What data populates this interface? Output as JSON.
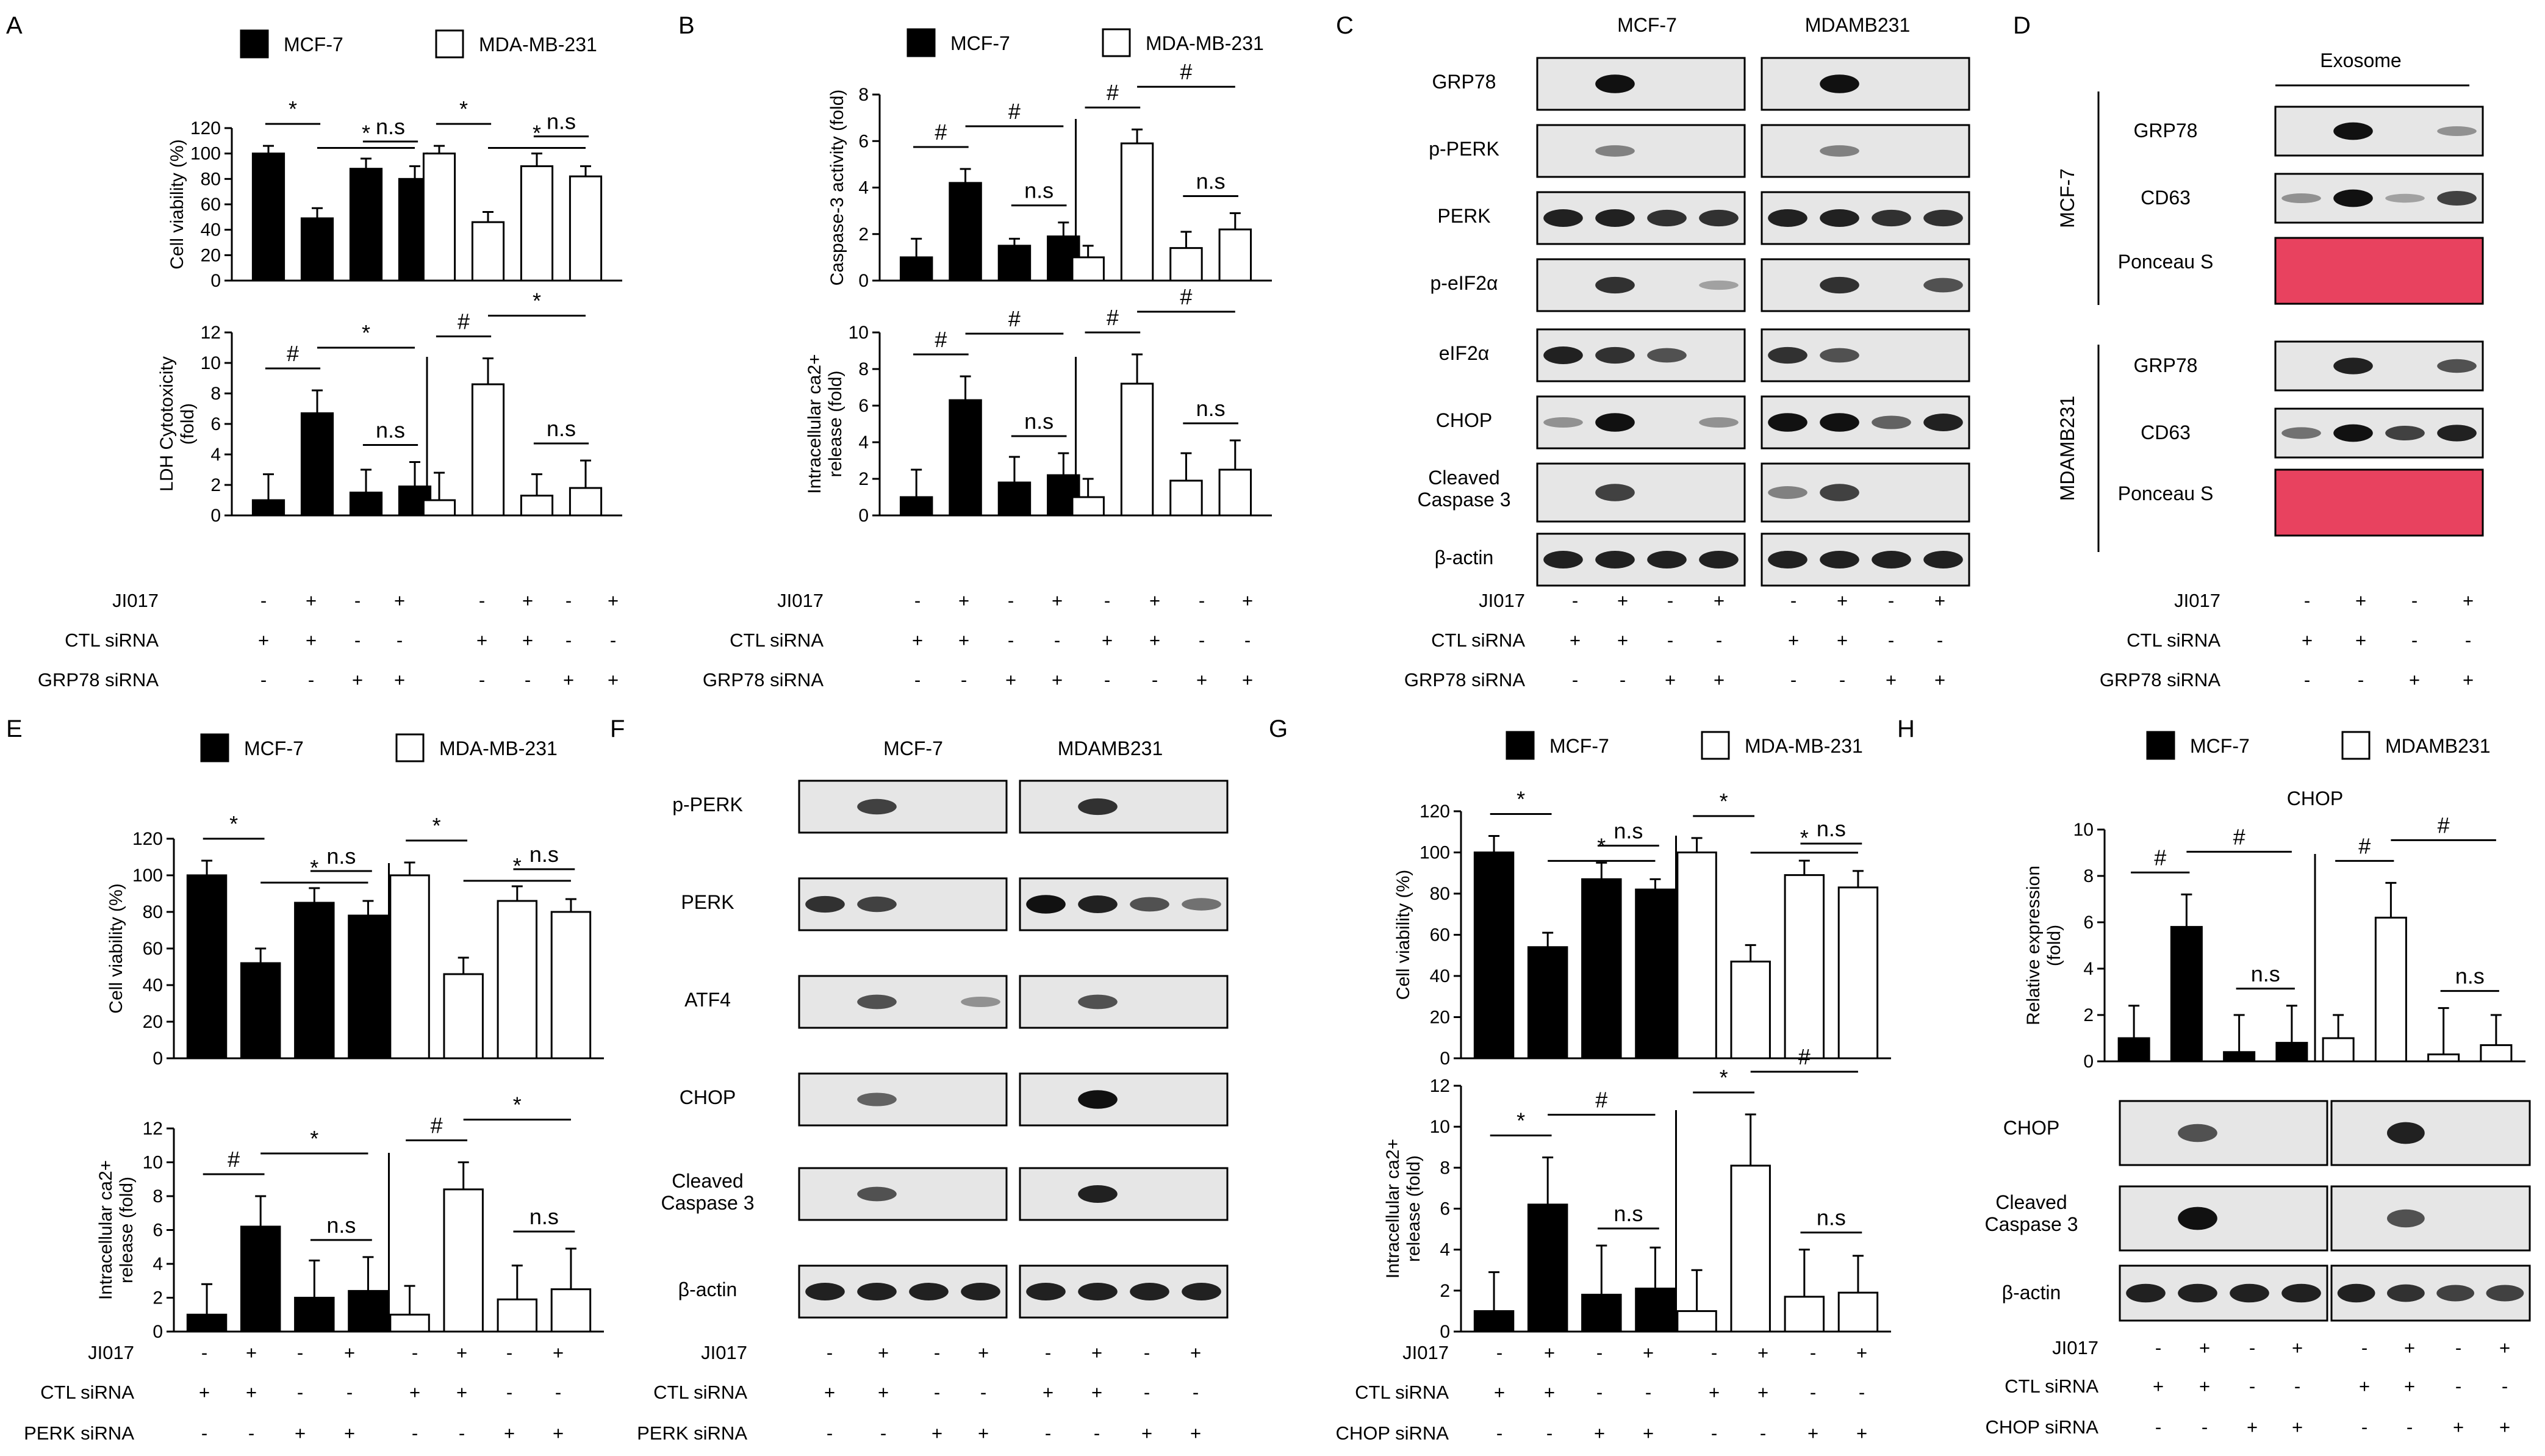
{
  "legends": {
    "cell_lines": [
      "MCF-7",
      "MDA-MB-231"
    ],
    "cell_lines_h": [
      "MCF-7",
      "MDAMB231"
    ]
  },
  "conditions": {
    "grp78": {
      "rows": [
        "JI017",
        "CTL siRNA",
        "GRP78 siRNA"
      ],
      "signs": [
        [
          "-",
          "+",
          "-",
          "+",
          "-",
          "+",
          "-",
          "+"
        ],
        [
          "+",
          "+",
          "-",
          "-",
          "+",
          "+",
          "-",
          "-"
        ],
        [
          "-",
          "-",
          "+",
          "+",
          "-",
          "-",
          "+",
          "+"
        ]
      ]
    },
    "perk": {
      "rows": [
        "JI017",
        "CTL siRNA",
        "PERK siRNA"
      ],
      "signs": [
        [
          "-",
          "+",
          "-",
          "+",
          "-",
          "+",
          "-",
          "+"
        ],
        [
          "+",
          "+",
          "-",
          "-",
          "+",
          "+",
          "-",
          "-"
        ],
        [
          "-",
          "-",
          "+",
          "+",
          "-",
          "-",
          "+",
          "+"
        ]
      ]
    },
    "chop": {
      "rows": [
        "JI017",
        "CTL siRNA",
        "CHOP siRNA"
      ],
      "signs": [
        [
          "-",
          "+",
          "-",
          "+",
          "-",
          "+",
          "-",
          "+"
        ],
        [
          "+",
          "+",
          "-",
          "-",
          "+",
          "+",
          "-",
          "-"
        ],
        [
          "-",
          "-",
          "+",
          "+",
          "-",
          "-",
          "+",
          "+"
        ]
      ]
    }
  },
  "blots": {
    "C": {
      "lanes_header": [
        "MCF-7",
        "MDAMB231"
      ],
      "bands": [
        "GRP78",
        "p-PERK",
        "PERK",
        "p-eIF2α",
        "eIF2α",
        "CHOP",
        "Cleaved\nCaspase 3",
        "β-actin"
      ]
    },
    "D": {
      "lanes_header": [
        "Exosome"
      ],
      "groups": [
        "MCF-7",
        "MDAMB231"
      ],
      "bands": [
        "GRP78",
        "CD63",
        "Ponceau S",
        "GRP78",
        "CD63",
        "Ponceau S"
      ]
    },
    "F": {
      "lanes_header": [
        "MCF-7",
        "MDAMB231"
      ],
      "bands": [
        "p-PERK",
        "PERK",
        "ATF4",
        "CHOP",
        "Cleaved\nCaspase 3",
        "β-actin"
      ]
    },
    "H": {
      "bands": [
        "CHOP",
        "Cleaved\nCaspase 3",
        "β-actin"
      ]
    }
  },
  "chart_data": [
    {
      "id": "A1",
      "panel": "A",
      "type": "bar",
      "ylabel": "Cell viability (%)",
      "ylim": [
        0,
        120
      ],
      "yticks": [
        0,
        20,
        40,
        60,
        80,
        100,
        120
      ],
      "series": [
        {
          "name": "MCF-7",
          "values": [
            100,
            49,
            88,
            80
          ],
          "errors": [
            6,
            8,
            8,
            10
          ]
        },
        {
          "name": "MDA-MB-231",
          "values": [
            100,
            46,
            90,
            82
          ],
          "errors": [
            6,
            8,
            10,
            8
          ]
        }
      ],
      "sig": [
        {
          "a": 0,
          "b": 1,
          "t": "*"
        },
        {
          "a": 1,
          "b": 3,
          "t": "*"
        },
        {
          "a": 2,
          "b": 3,
          "t": "n.s"
        },
        {
          "a": 4,
          "b": 5,
          "t": "*"
        },
        {
          "a": 5,
          "b": 7,
          "t": "*"
        },
        {
          "a": 6,
          "b": 7,
          "t": "n.s"
        }
      ]
    },
    {
      "id": "A2",
      "panel": "A",
      "type": "bar",
      "ylabel": "LDH Cytotoxicity\n(fold)",
      "ylim": [
        0,
        12
      ],
      "yticks": [
        0,
        2,
        4,
        6,
        8,
        10,
        12
      ],
      "series": [
        {
          "name": "MCF-7",
          "values": [
            1,
            6.7,
            1.5,
            1.9
          ],
          "errors": [
            1.7,
            1.5,
            1.5,
            1.6
          ]
        },
        {
          "name": "MDA-MB-231",
          "values": [
            1,
            8.6,
            1.3,
            1.8
          ],
          "errors": [
            1.8,
            1.7,
            1.4,
            1.8
          ]
        }
      ],
      "sig": [
        {
          "a": 0,
          "b": 1,
          "t": "#"
        },
        {
          "a": 1,
          "b": 3,
          "t": "*"
        },
        {
          "a": 2,
          "b": 3,
          "t": "n.s"
        },
        {
          "a": 4,
          "b": 5,
          "t": "#"
        },
        {
          "a": 5,
          "b": 7,
          "t": "*"
        },
        {
          "a": 6,
          "b": 7,
          "t": "n.s"
        }
      ]
    },
    {
      "id": "B1",
      "panel": "B",
      "type": "bar",
      "ylabel": "Caspase-3 activity (fold)",
      "ylim": [
        0,
        8
      ],
      "yticks": [
        0,
        2,
        4,
        6,
        8
      ],
      "series": [
        {
          "name": "MCF-7",
          "values": [
            1,
            4.2,
            1.5,
            1.9
          ],
          "errors": [
            0.8,
            0.6,
            0.3,
            0.6
          ]
        },
        {
          "name": "MDA-MB-231",
          "values": [
            1,
            5.9,
            1.4,
            2.2
          ],
          "errors": [
            0.5,
            0.6,
            0.7,
            0.7
          ]
        }
      ],
      "sig": [
        {
          "a": 0,
          "b": 1,
          "t": "#"
        },
        {
          "a": 1,
          "b": 3,
          "t": "#"
        },
        {
          "a": 2,
          "b": 3,
          "t": "n.s"
        },
        {
          "a": 4,
          "b": 5,
          "t": "#"
        },
        {
          "a": 5,
          "b": 7,
          "t": "#"
        },
        {
          "a": 6,
          "b": 7,
          "t": "n.s"
        }
      ]
    },
    {
      "id": "B2",
      "panel": "B",
      "type": "bar",
      "ylabel": "Intracellular ca2+\nrelease (fold)",
      "ylim": [
        0,
        10
      ],
      "yticks": [
        0,
        2,
        4,
        6,
        8,
        10
      ],
      "series": [
        {
          "name": "MCF-7",
          "values": [
            1,
            6.3,
            1.8,
            2.2
          ],
          "errors": [
            1.5,
            1.3,
            1.4,
            1.2
          ]
        },
        {
          "name": "MDA-MB-231",
          "values": [
            1,
            7.2,
            1.9,
            2.5
          ],
          "errors": [
            1.0,
            1.6,
            1.5,
            1.6
          ]
        }
      ],
      "sig": [
        {
          "a": 0,
          "b": 1,
          "t": "#"
        },
        {
          "a": 1,
          "b": 3,
          "t": "#"
        },
        {
          "a": 2,
          "b": 3,
          "t": "n.s"
        },
        {
          "a": 4,
          "b": 5,
          "t": "#"
        },
        {
          "a": 5,
          "b": 7,
          "t": "#"
        },
        {
          "a": 6,
          "b": 7,
          "t": "n.s"
        }
      ]
    },
    {
      "id": "E1",
      "panel": "E",
      "type": "bar",
      "ylabel": "Cell viability (%)",
      "ylim": [
        0,
        120
      ],
      "yticks": [
        0,
        20,
        40,
        60,
        80,
        100,
        120
      ],
      "series": [
        {
          "name": "MCF-7",
          "values": [
            100,
            52,
            85,
            78
          ],
          "errors": [
            8,
            8,
            8,
            8
          ]
        },
        {
          "name": "MDA-MB-231",
          "values": [
            100,
            46,
            86,
            80
          ],
          "errors": [
            7,
            9,
            8,
            7
          ]
        }
      ],
      "sig": [
        {
          "a": 0,
          "b": 1,
          "t": "*"
        },
        {
          "a": 1,
          "b": 3,
          "t": "*"
        },
        {
          "a": 2,
          "b": 3,
          "t": "n.s"
        },
        {
          "a": 4,
          "b": 5,
          "t": "*"
        },
        {
          "a": 5,
          "b": 7,
          "t": "*"
        },
        {
          "a": 6,
          "b": 7,
          "t": "n.s"
        }
      ]
    },
    {
      "id": "E2",
      "panel": "E",
      "type": "bar",
      "ylabel": "Intracellular ca2+\nrelease (fold)",
      "ylim": [
        0,
        12
      ],
      "yticks": [
        0,
        2,
        4,
        6,
        8,
        10,
        12
      ],
      "series": [
        {
          "name": "MCF-7",
          "values": [
            1,
            6.2,
            2,
            2.4
          ],
          "errors": [
            1.8,
            1.8,
            2.2,
            2.0
          ]
        },
        {
          "name": "MDA-MB-231",
          "values": [
            1,
            8.4,
            1.9,
            2.5
          ],
          "errors": [
            1.7,
            1.6,
            2.0,
            2.4
          ]
        }
      ],
      "sig": [
        {
          "a": 0,
          "b": 1,
          "t": "#"
        },
        {
          "a": 1,
          "b": 3,
          "t": "*"
        },
        {
          "a": 2,
          "b": 3,
          "t": "n.s"
        },
        {
          "a": 4,
          "b": 5,
          "t": "#"
        },
        {
          "a": 5,
          "b": 7,
          "t": "*"
        },
        {
          "a": 6,
          "b": 7,
          "t": "n.s"
        }
      ]
    },
    {
      "id": "G1",
      "panel": "G",
      "type": "bar",
      "ylabel": "Cell viability (%)",
      "ylim": [
        0,
        120
      ],
      "yticks": [
        0,
        20,
        40,
        60,
        80,
        100,
        120
      ],
      "series": [
        {
          "name": "MCF-7",
          "values": [
            100,
            54,
            87,
            82
          ],
          "errors": [
            8,
            7,
            8,
            5
          ]
        },
        {
          "name": "MDA-MB-231",
          "values": [
            100,
            47,
            89,
            83
          ],
          "errors": [
            7,
            8,
            7,
            8
          ]
        }
      ],
      "sig": [
        {
          "a": 0,
          "b": 1,
          "t": "*"
        },
        {
          "a": 1,
          "b": 3,
          "t": "*"
        },
        {
          "a": 2,
          "b": 3,
          "t": "n.s"
        },
        {
          "a": 4,
          "b": 5,
          "t": "*"
        },
        {
          "a": 5,
          "b": 7,
          "t": "*"
        },
        {
          "a": 6,
          "b": 7,
          "t": "n.s"
        }
      ]
    },
    {
      "id": "G2",
      "panel": "G",
      "type": "bar",
      "ylabel": "Intracellular ca2+\nrelease (fold)",
      "ylim": [
        0,
        12
      ],
      "yticks": [
        0,
        2,
        4,
        6,
        8,
        10,
        12
      ],
      "series": [
        {
          "name": "MCF-7",
          "values": [
            1,
            6.2,
            1.8,
            2.1
          ],
          "errors": [
            1.9,
            2.3,
            2.4,
            2.0
          ]
        },
        {
          "name": "MDA-MB-231",
          "values": [
            1,
            8.1,
            1.7,
            1.9
          ],
          "errors": [
            2.0,
            2.5,
            2.3,
            1.8
          ]
        }
      ],
      "sig": [
        {
          "a": 0,
          "b": 1,
          "t": "*"
        },
        {
          "a": 1,
          "b": 3,
          "t": "#"
        },
        {
          "a": 2,
          "b": 3,
          "t": "n.s"
        },
        {
          "a": 4,
          "b": 5,
          "t": "*"
        },
        {
          "a": 5,
          "b": 7,
          "t": "#"
        },
        {
          "a": 6,
          "b": 7,
          "t": "n.s"
        }
      ]
    },
    {
      "id": "H1",
      "panel": "H",
      "type": "bar",
      "title": "CHOP",
      "ylabel": "Relative expression\n(fold)",
      "ylim": [
        0,
        10
      ],
      "yticks": [
        0,
        2,
        4,
        6,
        8,
        10
      ],
      "series": [
        {
          "name": "MCF-7",
          "values": [
            1,
            5.8,
            0.4,
            0.8
          ],
          "errors": [
            1.4,
            1.4,
            1.6,
            1.6
          ]
        },
        {
          "name": "MDAMB231",
          "values": [
            1,
            6.2,
            0.3,
            0.7
          ],
          "errors": [
            1.0,
            1.5,
            2.0,
            1.3
          ]
        }
      ],
      "sig": [
        {
          "a": 0,
          "b": 1,
          "t": "#"
        },
        {
          "a": 1,
          "b": 3,
          "t": "#"
        },
        {
          "a": 2,
          "b": 3,
          "t": "n.s"
        },
        {
          "a": 4,
          "b": 5,
          "t": "#"
        },
        {
          "a": 5,
          "b": 7,
          "t": "#"
        },
        {
          "a": 6,
          "b": 7,
          "t": "n.s"
        }
      ]
    }
  ]
}
